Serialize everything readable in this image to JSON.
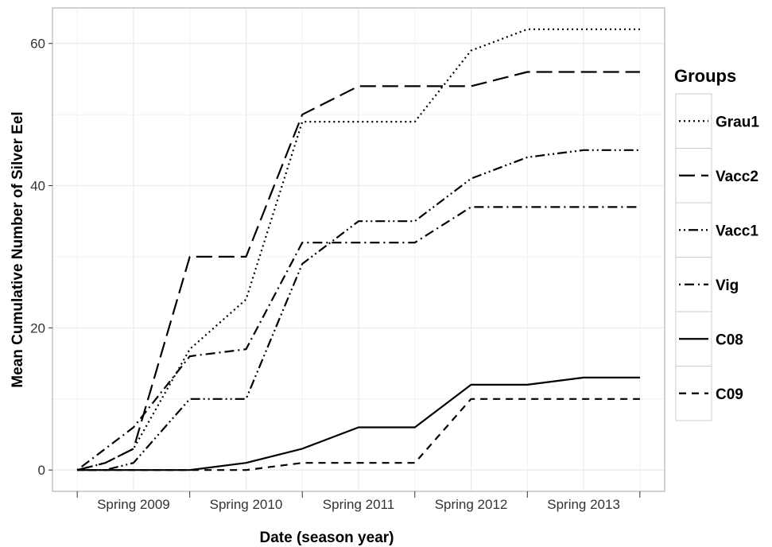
{
  "chart_data": {
    "type": "line",
    "xlabel": "Date (season year)",
    "ylabel": "Mean Cumulative Number of Silver Eel",
    "ylim": [
      -3,
      65
    ],
    "y_ticks": [
      0,
      20,
      40,
      60
    ],
    "x_ticks": [
      {
        "value": 0.5,
        "label": "Spring 2009"
      },
      {
        "value": 1.5,
        "label": "Spring 2010"
      },
      {
        "value": 2.5,
        "label": "Spring 2011"
      },
      {
        "value": 3.5,
        "label": "Spring 2012"
      },
      {
        "value": 4.5,
        "label": "Spring 2013"
      }
    ],
    "x_minor_ticks": [
      0,
      1,
      2,
      3,
      4,
      5
    ],
    "grid": true,
    "legend": {
      "title": "Groups",
      "placement": "right"
    },
    "x": [
      0,
      0.25,
      0.5,
      1,
      1.5,
      2,
      2.5,
      3,
      3.5,
      4,
      4.5,
      5
    ],
    "series": [
      {
        "name": "Grau1",
        "dash": "dotted",
        "values": [
          0,
          1,
          3,
          17,
          24,
          49,
          49,
          49,
          59,
          62,
          62,
          62
        ]
      },
      {
        "name": "Vacc2",
        "dash": "longdash",
        "values": [
          0,
          1,
          3,
          30,
          30,
          50,
          54,
          54,
          54,
          56,
          56,
          56
        ]
      },
      {
        "name": "Vacc1",
        "dash": "dotdash2",
        "values": [
          0,
          0,
          1,
          10,
          10,
          29,
          35,
          35,
          41,
          44,
          45,
          45
        ]
      },
      {
        "name": "Vig",
        "dash": "dotdash",
        "values": [
          0,
          3,
          6,
          16,
          17,
          32,
          32,
          32,
          37,
          37,
          37,
          37
        ]
      },
      {
        "name": "C08",
        "dash": "solid",
        "values": [
          0,
          0,
          0,
          0,
          1,
          3,
          6,
          6,
          12,
          12,
          13,
          13
        ]
      },
      {
        "name": "C09",
        "dash": "dashed",
        "values": [
          0,
          0,
          0,
          0,
          0,
          1,
          1,
          1,
          10,
          10,
          10,
          10
        ]
      }
    ],
    "colors": {
      "line": "#000000",
      "grid": "#ebebeb",
      "frame": "#b3b3b3",
      "legend_frame": "#cccccc"
    }
  }
}
